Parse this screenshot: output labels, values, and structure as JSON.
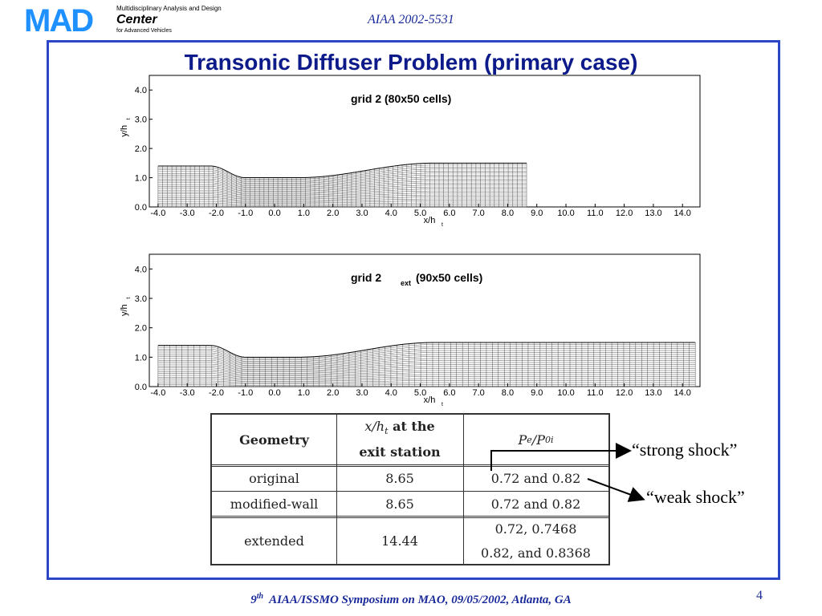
{
  "header": {
    "logo_text": "MAD",
    "center_line1": "Multidisciplinary Analysis and Design",
    "center_line2": "Center",
    "center_line3": "for Advanced Vehicles",
    "paper_id": "AIAA 2002-5531"
  },
  "slide": {
    "title": "Transonic Diffuser Problem (primary case)"
  },
  "plots": [
    {
      "label_main": "grid 2 (80x50 cells)",
      "label_sub": "",
      "label_rest": "",
      "xlabel": "x/h",
      "xlabel_sub": "t",
      "ylabel": "y/h",
      "ylabel_sub": "t",
      "x_ticks": [
        "-4.0",
        "-3.0",
        "-2.0",
        "-1.0",
        "0.0",
        "1.0",
        "2.0",
        "3.0",
        "4.0",
        "5.0",
        "6.0",
        "7.0",
        "8.0",
        "9.0",
        "10.0",
        "11.0",
        "12.0",
        "13.0",
        "14.0"
      ],
      "y_ticks": [
        "0.0",
        "1.0",
        "2.0",
        "3.0",
        "4.0"
      ],
      "exit_x": 8.65
    },
    {
      "label_main": "grid 2",
      "label_sub": "ext",
      "label_rest": "(90x50 cells)",
      "xlabel": "x/h",
      "xlabel_sub": "t",
      "ylabel": "y/h",
      "ylabel_sub": "t",
      "x_ticks": [
        "-4.0",
        "-3.0",
        "-2.0",
        "-1.0",
        "0.0",
        "1.0",
        "2.0",
        "3.0",
        "4.0",
        "5.0",
        "6.0",
        "7.0",
        "8.0",
        "9.0",
        "10.0",
        "11.0",
        "12.0",
        "13.0",
        "14.0"
      ],
      "y_ticks": [
        "0.0",
        "1.0",
        "2.0",
        "3.0",
        "4.0"
      ],
      "exit_x": 14.44
    }
  ],
  "table": {
    "headers": [
      "Geometry",
      "x/h",
      "t",
      "at the",
      "exit station",
      "P",
      "e",
      "/P",
      "0i"
    ],
    "rows": [
      {
        "geometry": "original",
        "exit": "8.65",
        "pressure1": "0.72 and 0.82",
        "pressure2": ""
      },
      {
        "geometry": "modified-wall",
        "exit": "8.65",
        "pressure1": "0.72 and 0.82",
        "pressure2": ""
      },
      {
        "geometry": "extended",
        "exit": "14.44",
        "pressure1": "0.72, 0.7468",
        "pressure2": "0.82, and 0.8368"
      }
    ]
  },
  "annotations": {
    "strong": "“strong shock”",
    "weak": "“weak shock”"
  },
  "footer": {
    "ordinal": "9",
    "ordinal_sup": "th",
    "text": "AIAA/ISSMO Symposium on MAO, 09/05/2002, Atlanta, GA",
    "page": "4"
  },
  "colors": {
    "frame": "#2b47c8",
    "title": "#0d1a8a",
    "footer": "#1a2a9a",
    "logo": "#1e90ff"
  }
}
